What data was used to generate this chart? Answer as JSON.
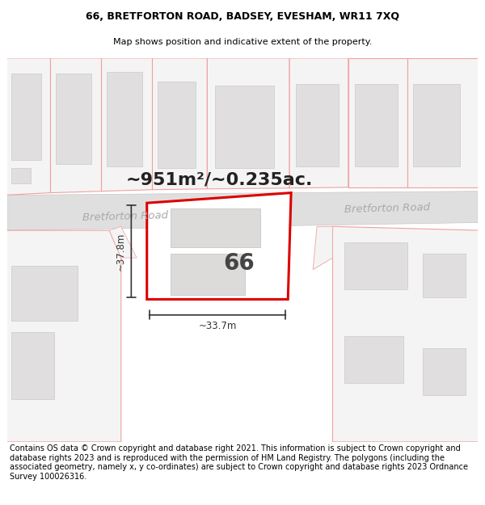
{
  "title_line1": "66, BRETFORTON ROAD, BADSEY, EVESHAM, WR11 7XQ",
  "title_line2": "Map shows position and indicative extent of the property.",
  "footer_text": "Contains OS data © Crown copyright and database right 2021. This information is subject to Crown copyright and database rights 2023 and is reproduced with the permission of HM Land Registry. The polygons (including the associated geometry, namely x, y co-ordinates) are subject to Crown copyright and database rights 2023 Ordnance Survey 100026316.",
  "area_text": "~951m²/~0.235ac.",
  "road_name_left": "Bretforton Road",
  "road_name_right": "Bretforton Road",
  "property_number": "66",
  "dim_width": "~33.7m",
  "dim_height": "~37.8m",
  "map_bg": "#ffffff",
  "road_fill": "#e0dfdf",
  "road_edge": "#c8c8c8",
  "block_fill": "#f5f4f4",
  "block_edge": "#f0a0a0",
  "building_fill": "#e0dede",
  "building_edge": "#d0cece",
  "plot_edge": "#dd0000",
  "plot_fill": "#ffffff",
  "inner_bld_fill": "#dddada",
  "inner_bld_edge": "#cccccc",
  "dim_color": "#333333",
  "road_text_color": "#aaaaaa",
  "area_text_color": "#222222",
  "num_color": "#444444"
}
